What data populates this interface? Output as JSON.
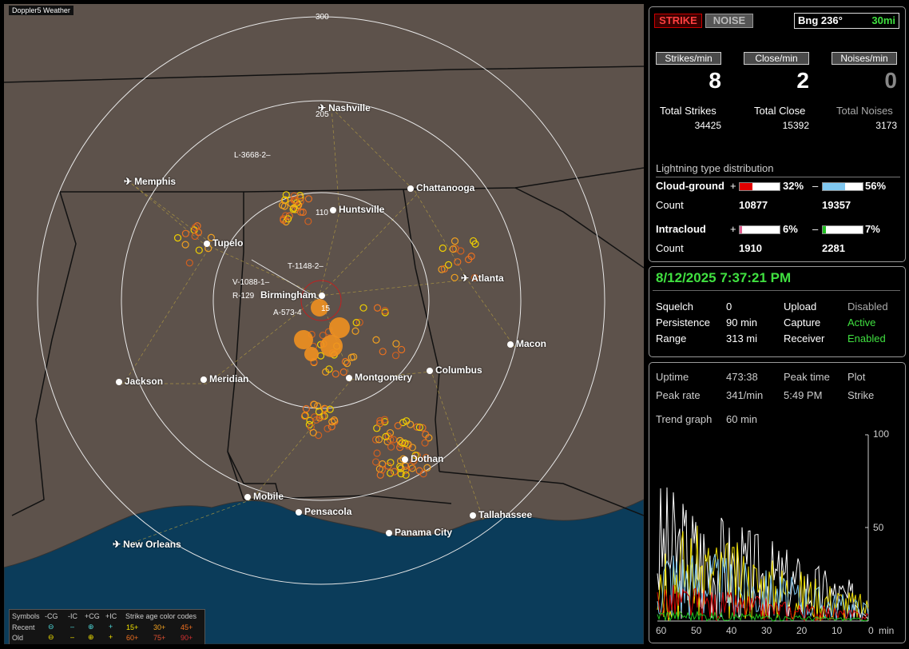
{
  "map": {
    "brand": "Doppler5 Weather",
    "rings": [
      "300",
      "205",
      "110",
      "15"
    ],
    "cities": [
      {
        "name": "Nashville",
        "icon": "airport"
      },
      {
        "name": "Memphis",
        "icon": "airport"
      },
      {
        "name": "Chattanooga",
        "icon": "city"
      },
      {
        "name": "Huntsville",
        "icon": "city"
      },
      {
        "name": "Tupelo",
        "icon": "city"
      },
      {
        "name": "Atlanta",
        "icon": "airport"
      },
      {
        "name": "Birmingham",
        "icon": "city"
      },
      {
        "name": "Macon",
        "icon": "city"
      },
      {
        "name": "Jackson",
        "icon": "city"
      },
      {
        "name": "Meridian",
        "icon": "city"
      },
      {
        "name": "Montgomery",
        "icon": "city"
      },
      {
        "name": "Columbus",
        "icon": "city"
      },
      {
        "name": "Dothan",
        "icon": "city"
      },
      {
        "name": "Mobile",
        "icon": "city"
      },
      {
        "name": "Pensacola",
        "icon": "city"
      },
      {
        "name": "Tallahassee",
        "icon": "city"
      },
      {
        "name": "Panama City",
        "icon": "city"
      },
      {
        "name": "New Orleans",
        "icon": "airport"
      }
    ],
    "storm_labels": [
      "L-3668-2–",
      "T-1148-2–",
      "V-1088-1–",
      "R-129",
      "A-573-4"
    ],
    "legend": {
      "symbols_label": "Symbols",
      "cg_minus": "-CG",
      "ic_minus": "-IC",
      "cg_plus": "+CG",
      "ic_plus": "+IC",
      "age_label": "Strike age color codes",
      "recent": "Recent",
      "old": "Old",
      "ages_recent": [
        "15+",
        "30+",
        "45+"
      ],
      "ages_old": [
        "60+",
        "75+",
        "90+"
      ]
    },
    "colors": {
      "land": "#5d524b",
      "water": "#0b3c5a",
      "state_line": "#111111",
      "road": "#b8a040",
      "ring": "#e8e8e8"
    }
  },
  "header": {
    "strike": "STRIKE",
    "noise": "NOISE",
    "bearing": "Bng 236°",
    "range": "30mi"
  },
  "stats": {
    "strikes_label": "Strikes/min",
    "strikes": "8",
    "close_label": "Close/min",
    "close": "2",
    "noises_label": "Noises/min",
    "noises": "0",
    "total_strikes_label": "Total Strikes",
    "total_strikes": "34425",
    "total_close_label": "Total Close",
    "total_close": "15392",
    "total_noises_label": "Total Noises",
    "total_noises": "3173",
    "dist_title": "Lightning type distribution",
    "cg_label": "Cloud-ground",
    "cg_pos_pct": "32%",
    "cg_neg_pct": "56%",
    "cg_pos_frac": 0.32,
    "cg_neg_frac": 0.56,
    "count_label": "Count",
    "cg_pos_count": "10877",
    "cg_neg_count": "19357",
    "ic_label": "Intracloud",
    "ic_pos_pct": "6%",
    "ic_neg_pct": "7%",
    "ic_pos_frac": 0.06,
    "ic_neg_frac": 0.07,
    "ic_pos_count": "1910",
    "ic_neg_count": "2281",
    "plus": "+",
    "minus": "–"
  },
  "status": {
    "datetime": "8/12/2025 7:37:21 PM",
    "squelch_label": "Squelch",
    "squelch": "0",
    "upload_label": "Upload",
    "upload": "Disabled",
    "persistence_label": "Persistence",
    "persistence": "90 min",
    "capture_label": "Capture",
    "capture": "Active",
    "range_label": "Range",
    "range": "313 mi",
    "receiver_label": "Receiver",
    "receiver": "Enabled"
  },
  "trend": {
    "uptime_label": "Uptime",
    "uptime": "473:38",
    "peak_time_label": "Peak time",
    "peak_time": "5:49 PM",
    "plot_label": "Plot",
    "plot": "Strike",
    "peak_rate_label": "Peak rate",
    "peak_rate": "341/min",
    "trend_label": "Trend graph",
    "trend": "60 min",
    "y_ticks": [
      "100",
      "50",
      "0"
    ],
    "x_ticks": [
      "60",
      "50",
      "40",
      "30",
      "20",
      "10",
      "0"
    ],
    "x_unit": "min"
  }
}
